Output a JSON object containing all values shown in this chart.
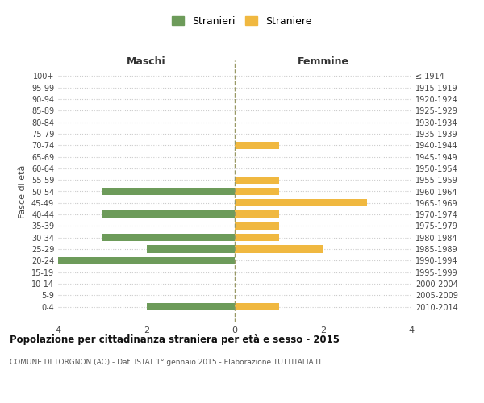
{
  "age_groups": [
    "100+",
    "95-99",
    "90-94",
    "85-89",
    "80-84",
    "75-79",
    "70-74",
    "65-69",
    "60-64",
    "55-59",
    "50-54",
    "45-49",
    "40-44",
    "35-39",
    "30-34",
    "25-29",
    "20-24",
    "15-19",
    "10-14",
    "5-9",
    "0-4"
  ],
  "birth_years": [
    "≤ 1914",
    "1915-1919",
    "1920-1924",
    "1925-1929",
    "1930-1934",
    "1935-1939",
    "1940-1944",
    "1945-1949",
    "1950-1954",
    "1955-1959",
    "1960-1964",
    "1965-1969",
    "1970-1974",
    "1975-1979",
    "1980-1984",
    "1985-1989",
    "1990-1994",
    "1995-1999",
    "2000-2004",
    "2005-2009",
    "2010-2014"
  ],
  "maschi": [
    0,
    0,
    0,
    0,
    0,
    0,
    0,
    0,
    0,
    0,
    3,
    0,
    3,
    0,
    3,
    2,
    4,
    0,
    0,
    0,
    2
  ],
  "femmine": [
    0,
    0,
    0,
    0,
    0,
    0,
    1,
    0,
    0,
    1,
    1,
    3,
    1,
    1,
    1,
    2,
    0,
    0,
    0,
    0,
    1
  ],
  "maschi_color": "#6d9b5a",
  "femmine_color": "#f0b840",
  "title_main": "Popolazione per cittadinanza straniera per età e sesso - 2015",
  "title_sub": "COMUNE DI TORGNON (AO) - Dati ISTAT 1° gennaio 2015 - Elaborazione TUTTITALIA.IT",
  "xlabel_left": "Maschi",
  "xlabel_right": "Femmine",
  "ylabel_left": "Fasce di età",
  "legend_maschi": "Stranieri",
  "legend_femmine": "Straniere",
  "xlim": 4,
  "background_color": "#ffffff",
  "grid_color": "#cccccc"
}
